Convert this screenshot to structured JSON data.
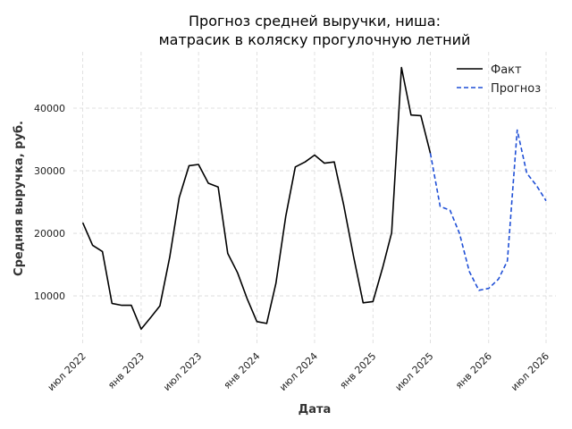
{
  "chart_data": {
    "type": "line",
    "title": "Прогноз средней выручки, ниша:",
    "subtitle": "матрасик в коляску прогулочную летний",
    "xlabel": "Дата",
    "ylabel": "Средняя выручка, руб.",
    "x_ticks": [
      "июл 2022",
      "янв 2023",
      "июл 2023",
      "янв 2024",
      "июл 2024",
      "янв 2025",
      "июл 2025",
      "янв 2026",
      "июл 2026"
    ],
    "y_ticks": [
      10000,
      20000,
      30000,
      40000
    ],
    "xlim": [
      "2022-06-01",
      "2026-08-01"
    ],
    "ylim": [
      2300,
      49000
    ],
    "grid": true,
    "legend_position": "top-right",
    "series": [
      {
        "name": "Факт",
        "color": "#000000",
        "style": "solid",
        "points": [
          [
            "2022-07-01",
            21700
          ],
          [
            "2022-08-01",
            18100
          ],
          [
            "2022-09-01",
            17100
          ],
          [
            "2022-10-01",
            8800
          ],
          [
            "2022-11-01",
            8500
          ],
          [
            "2022-12-01",
            8500
          ],
          [
            "2023-01-01",
            4700
          ],
          [
            "2023-02-01",
            6600
          ],
          [
            "2023-03-01",
            8400
          ],
          [
            "2023-04-01",
            16200
          ],
          [
            "2023-05-01",
            25700
          ],
          [
            "2023-06-01",
            30800
          ],
          [
            "2023-07-01",
            31000
          ],
          [
            "2023-08-01",
            28000
          ],
          [
            "2023-09-01",
            27400
          ],
          [
            "2023-10-01",
            16800
          ],
          [
            "2023-11-01",
            13700
          ],
          [
            "2023-12-01",
            9600
          ],
          [
            "2024-01-01",
            5900
          ],
          [
            "2024-02-01",
            5600
          ],
          [
            "2024-03-01",
            12000
          ],
          [
            "2024-04-01",
            22700
          ],
          [
            "2024-05-01",
            30600
          ],
          [
            "2024-06-01",
            31400
          ],
          [
            "2024-07-01",
            32500
          ],
          [
            "2024-08-01",
            31200
          ],
          [
            "2024-09-01",
            31400
          ],
          [
            "2024-10-01",
            24500
          ],
          [
            "2024-11-01",
            16300
          ],
          [
            "2024-12-01",
            8900
          ],
          [
            "2025-01-01",
            9100
          ],
          [
            "2025-02-01",
            14600
          ],
          [
            "2025-03-01",
            20100
          ],
          [
            "2025-04-01",
            46500
          ],
          [
            "2025-05-01",
            38900
          ],
          [
            "2025-06-01",
            38800
          ],
          [
            "2025-07-01",
            32800
          ]
        ]
      },
      {
        "name": "Прогноз",
        "color": "#1f4fd6",
        "style": "dashed",
        "points": [
          [
            "2025-07-01",
            32800
          ],
          [
            "2025-08-01",
            24300
          ],
          [
            "2025-09-01",
            23700
          ],
          [
            "2025-10-01",
            20000
          ],
          [
            "2025-11-01",
            13900
          ],
          [
            "2025-12-01",
            10900
          ],
          [
            "2026-01-01",
            11200
          ],
          [
            "2026-02-01",
            12700
          ],
          [
            "2026-03-01",
            15600
          ],
          [
            "2026-04-01",
            36500
          ],
          [
            "2026-05-01",
            29600
          ],
          [
            "2026-06-01",
            27600
          ],
          [
            "2026-07-01",
            25200
          ]
        ]
      }
    ]
  }
}
